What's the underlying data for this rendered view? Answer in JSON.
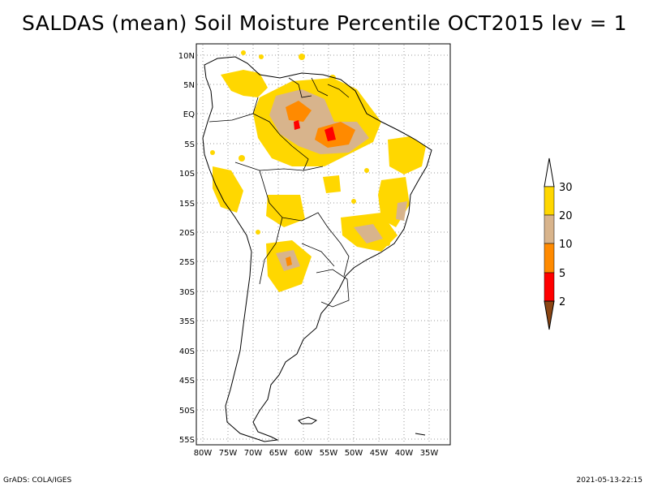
{
  "title": "SALDAS (mean) Soil Moisture Percentile OCT2015 lev = 1",
  "map": {
    "lat_labels": [
      "10N",
      "5N",
      "EQ",
      "5S",
      "10S",
      "15S",
      "20S",
      "25S",
      "30S",
      "35S",
      "40S",
      "45S",
      "50S",
      "55S"
    ],
    "lon_labels": [
      "80W",
      "75W",
      "70W",
      "65W",
      "60W",
      "55W",
      "50W",
      "45W",
      "40W",
      "35W"
    ]
  },
  "colorbar": {
    "labels": [
      "30",
      "20",
      "10",
      "5",
      "2"
    ],
    "colors": {
      "above": "#ffffff",
      "c30": "#ffd700",
      "c20": "#d8b48c",
      "c10": "#ff8a00",
      "c5": "#ff0000",
      "c2": "#8b4513"
    }
  },
  "footer": {
    "left": "GrADS: COLA/IGES",
    "right": "2021-05-13-22:15"
  }
}
